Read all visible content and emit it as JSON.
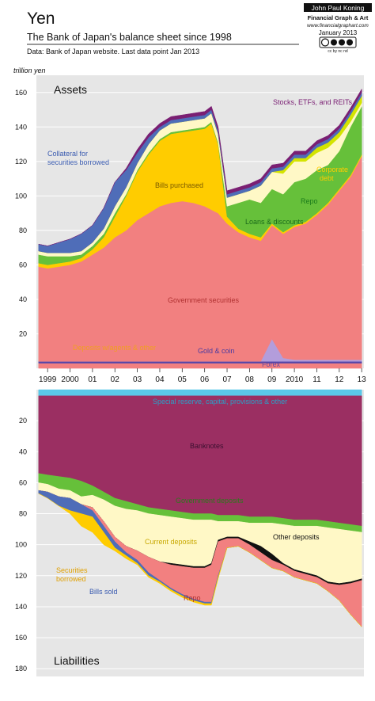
{
  "header": {
    "title": "Yen",
    "subtitle": "The Bank of Japan's balance sheet since 1998",
    "source": "Data: Bank of Japan website. Last data point Jan 2013",
    "author": "John Paul Koning",
    "author_tagline": "Financial Graph & Art",
    "url": "www.financialgraphart.com",
    "date": "January 2013",
    "license_badge": "cc by nc nd"
  },
  "chart_data": [
    {
      "type": "area",
      "title": "Assets",
      "ylabel": "trillion yen",
      "x_ticks": [
        "1999",
        "2000",
        "01",
        "02",
        "03",
        "04",
        "05",
        "06",
        "07",
        "08",
        "09",
        "2010",
        "11",
        "12",
        "13"
      ],
      "y_ticks": [
        20,
        40,
        60,
        80,
        100,
        120,
        140,
        160
      ],
      "ylim": [
        0,
        170
      ],
      "xlim": [
        1998.5,
        2013.1
      ],
      "stacked": true,
      "x": [
        1998.6,
        1999.0,
        1999.5,
        2000.0,
        2000.5,
        2001.0,
        2001.5,
        2002.0,
        2002.5,
        2003.0,
        2003.5,
        2004.0,
        2004.5,
        2005.0,
        2005.5,
        2006.0,
        2006.3,
        2006.6,
        2007.0,
        2007.5,
        2008.0,
        2008.5,
        2009.0,
        2009.5,
        2010.0,
        2010.5,
        2011.0,
        2011.5,
        2012.0,
        2012.5,
        2013.0
      ],
      "series": [
        {
          "name": "Deposits w/agents & other",
          "color": "#f28080",
          "values": [
            3,
            3,
            3,
            3,
            3,
            3,
            3,
            3,
            3,
            3,
            3,
            3,
            3,
            3,
            3,
            3,
            3,
            3,
            3,
            3,
            3,
            3,
            3,
            3,
            3,
            3,
            3,
            3,
            3,
            3,
            3
          ]
        },
        {
          "name": "Gold & coin",
          "color": "#5546a8",
          "values": [
            1,
            1,
            1,
            1,
            1,
            1,
            1,
            1,
            1,
            1,
            1,
            1,
            1,
            1,
            1,
            1,
            1,
            1,
            1,
            1,
            1,
            1,
            1,
            1,
            1,
            1,
            1,
            1,
            1,
            1,
            1
          ]
        },
        {
          "name": "Forex",
          "color": "#b39ddb",
          "values": [
            0,
            0,
            0,
            0,
            0,
            0,
            0,
            0,
            0,
            0,
            0,
            0,
            0,
            0,
            0,
            0,
            0,
            0,
            0,
            0,
            0,
            0,
            13,
            2,
            1,
            1,
            1,
            1,
            1,
            1,
            1
          ]
        },
        {
          "name": "Government securities",
          "color": "#f28080",
          "values": [
            55,
            54,
            55,
            56,
            58,
            62,
            66,
            72,
            76,
            82,
            86,
            90,
            92,
            93,
            92,
            90,
            88,
            86,
            80,
            75,
            72,
            70,
            66,
            72,
            77,
            79,
            84,
            90,
            98,
            106,
            118
          ]
        },
        {
          "name": "Bills purchased",
          "color": "#ffcc00",
          "values": [
            2,
            2,
            2,
            2,
            2,
            3,
            6,
            12,
            20,
            28,
            34,
            38,
            40,
            40,
            42,
            45,
            50,
            40,
            4,
            2,
            2,
            2,
            1,
            1,
            1,
            1,
            1,
            1,
            1,
            1,
            1
          ]
        },
        {
          "name": "Loans & discounts",
          "color": "#66c03a",
          "values": [
            5,
            5,
            4,
            3,
            2,
            2,
            2,
            2,
            1,
            1,
            1,
            1,
            1,
            1,
            1,
            1,
            1,
            1,
            6,
            15,
            20,
            20,
            20,
            22,
            25,
            25,
            25,
            22,
            22,
            28,
            28
          ]
        },
        {
          "name": "Repo",
          "color": "#fff8c6",
          "values": [
            2,
            2,
            2,
            2,
            2,
            2,
            3,
            4,
            4,
            4,
            5,
            5,
            5,
            5,
            5,
            5,
            5,
            5,
            5,
            5,
            5,
            10,
            10,
            12,
            12,
            10,
            10,
            10,
            8,
            3,
            2
          ]
        },
        {
          "name": "Corporate debt",
          "color": "#d4e400",
          "values": [
            0,
            0,
            0,
            0,
            0,
            0,
            0,
            0,
            0,
            0,
            0,
            0,
            0,
            0,
            0,
            0,
            0,
            0,
            0,
            0,
            0,
            0,
            0,
            2,
            2,
            2,
            3,
            3,
            3,
            4,
            4
          ]
        },
        {
          "name": "Collateral for securities borrowed",
          "color": "#4f6db8",
          "values": [
            4,
            4,
            6,
            8,
            10,
            10,
            12,
            14,
            10,
            6,
            4,
            2,
            2,
            2,
            2,
            2,
            2,
            2,
            2,
            2,
            2,
            2,
            2,
            2,
            2,
            2,
            2,
            2,
            2,
            2,
            2
          ]
        },
        {
          "name": "Stocks, ETFs, and REITs",
          "color": "#7a1f73",
          "values": [
            0,
            0,
            0,
            0,
            0,
            0,
            0,
            0,
            1,
            2,
            2,
            2,
            2,
            2,
            2,
            2,
            2,
            2,
            2,
            2,
            2,
            2,
            2,
            2,
            2,
            2,
            2,
            2,
            2,
            2,
            2
          ]
        }
      ]
    },
    {
      "type": "area",
      "title": "Liabilities",
      "y_ticks": [
        20,
        40,
        60,
        80,
        100,
        120,
        140,
        160,
        180
      ],
      "ylim": [
        0,
        185
      ],
      "xlim": [
        1998.5,
        2013.1
      ],
      "inverted_y": true,
      "stacked": true,
      "x": [
        1998.6,
        1999.0,
        1999.5,
        2000.0,
        2000.5,
        2001.0,
        2001.5,
        2002.0,
        2002.5,
        2003.0,
        2003.5,
        2004.0,
        2004.5,
        2005.0,
        2005.5,
        2006.0,
        2006.3,
        2006.6,
        2007.0,
        2007.5,
        2008.0,
        2008.5,
        2009.0,
        2009.5,
        2010.0,
        2010.5,
        2011.0,
        2011.5,
        2012.0,
        2012.5,
        2013.0
      ],
      "series": [
        {
          "name": "Special reserve, capital, provisions & other",
          "color": "#5bc8e8",
          "values": [
            4,
            4,
            4,
            4,
            4,
            4,
            4,
            4,
            4,
            4,
            4,
            4,
            4,
            4,
            4,
            4,
            4,
            4,
            4,
            4,
            4,
            4,
            4,
            4,
            4,
            4,
            4,
            4,
            4,
            4,
            4
          ]
        },
        {
          "name": "Banknotes",
          "color": "#9b2f62",
          "values": [
            50,
            51,
            52,
            53,
            55,
            58,
            62,
            66,
            68,
            70,
            72,
            73,
            74,
            75,
            76,
            76,
            76,
            77,
            77,
            77,
            78,
            78,
            78,
            79,
            80,
            80,
            80,
            81,
            82,
            83,
            84
          ]
        },
        {
          "name": "Government deposits",
          "color": "#66c03a",
          "values": [
            6,
            6,
            8,
            8,
            10,
            6,
            5,
            5,
            5,
            4,
            4,
            4,
            4,
            4,
            4,
            4,
            4,
            4,
            4,
            4,
            4,
            4,
            4,
            4,
            4,
            4,
            4,
            4,
            4,
            4,
            4
          ]
        },
        {
          "name": "Current deposits",
          "color": "#fff8c6",
          "values": [
            5,
            5,
            5,
            5,
            5,
            8,
            14,
            20,
            24,
            26,
            28,
            30,
            30,
            30,
            30,
            30,
            28,
            12,
            10,
            10,
            12,
            15,
            20,
            25,
            28,
            30,
            32,
            35,
            35,
            33,
            30
          ]
        },
        {
          "name": "Other deposits",
          "color": "#111111",
          "values": [
            0,
            0,
            0,
            0,
            0,
            0,
            0,
            0,
            0,
            0,
            0,
            0,
            1,
            1,
            1,
            1,
            1,
            1,
            1,
            1,
            2,
            4,
            4,
            1,
            1,
            1,
            1,
            1,
            1,
            1,
            1
          ]
        },
        {
          "name": "Repo",
          "color": "#f28080",
          "values": [
            0,
            0,
            0,
            0,
            0,
            2,
            3,
            3,
            4,
            6,
            10,
            12,
            15,
            18,
            20,
            22,
            24,
            22,
            6,
            5,
            5,
            5,
            5,
            4,
            4,
            4,
            4,
            5,
            10,
            20,
            30
          ]
        },
        {
          "name": "Bills sold",
          "color": "#4f6db8",
          "values": [
            2,
            4,
            6,
            8,
            6,
            4,
            4,
            4,
            2,
            2,
            2,
            1,
            1,
            1,
            1,
            1,
            1,
            1,
            0,
            0,
            0,
            0,
            0,
            0,
            0,
            0,
            0,
            0,
            0,
            0,
            0
          ]
        },
        {
          "name": "Securities borrowed",
          "color": "#ffcc00",
          "values": [
            0,
            0,
            0,
            2,
            8,
            10,
            8,
            2,
            2,
            1,
            1,
            1,
            1,
            1,
            1,
            1,
            1,
            1,
            0,
            0,
            0,
            0,
            0,
            0,
            0,
            0,
            0,
            0,
            0,
            0,
            0
          ]
        }
      ]
    }
  ],
  "labels": {
    "assets": {
      "stocks": "Stocks, ETFs, and REITs",
      "collateral_1": "Collateral for",
      "collateral_2": "securities borrowed",
      "bills_purchased": "Bills purchased",
      "repo": "Repo",
      "corporate_1": "Corporate",
      "corporate_2": "debt",
      "loans": "Loans & discounts",
      "gov_sec": "Government securities",
      "deposits": "Deposits w/agents & other",
      "gold": "Gold & coin",
      "forex": "Forex"
    },
    "liabilities": {
      "special": "Special reserve, capital, provisions & other",
      "banknotes": "Banknotes",
      "gov_deposits": "Government deposits",
      "current": "Current deposits",
      "other_deposits": "Other deposits",
      "sec_borrowed_1": "Securities",
      "sec_borrowed_2": "borrowed",
      "bills_sold": "Bills sold",
      "repo": "Repo"
    }
  }
}
